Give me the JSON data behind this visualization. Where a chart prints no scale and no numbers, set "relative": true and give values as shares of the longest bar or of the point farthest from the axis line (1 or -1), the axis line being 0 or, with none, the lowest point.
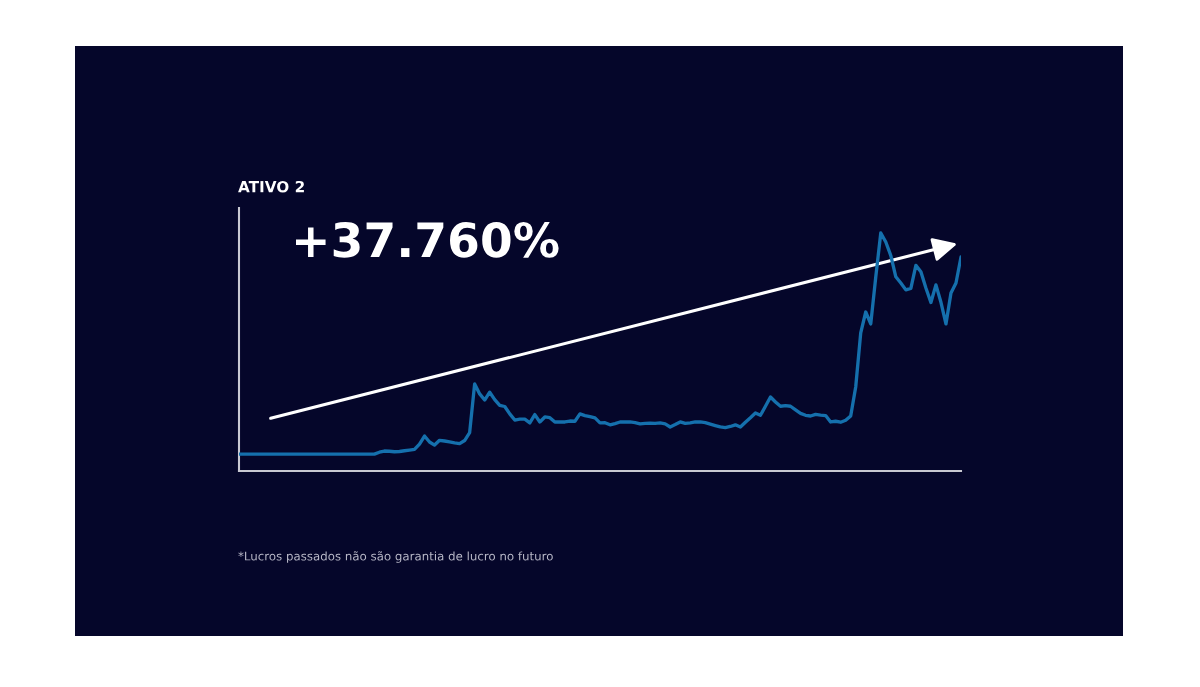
{
  "chart_data": {
    "type": "line",
    "title": "ATIVO 2",
    "annotations": [
      "+37.760%",
      "*Lucros passados não são garantia de lucro no futuro"
    ],
    "categories": [
      null,
      null,
      null,
      null,
      null,
      null,
      null,
      null,
      null,
      null,
      null,
      null,
      null,
      null,
      null,
      null,
      null,
      null,
      null,
      null,
      null,
      null,
      null,
      null,
      null,
      null,
      null,
      null,
      null,
      null,
      null,
      null,
      null,
      null,
      null,
      null,
      null,
      null,
      null,
      null,
      null,
      null,
      null,
      null,
      null,
      null,
      null,
      null,
      null,
      null,
      null,
      null,
      null,
      null,
      null,
      null,
      null,
      null,
      null,
      null,
      null,
      null,
      null,
      null,
      null,
      null,
      null,
      null,
      null,
      null,
      null,
      null,
      null,
      null,
      null,
      null,
      null,
      null,
      null,
      null,
      null,
      null,
      null,
      null,
      null,
      null,
      null,
      null,
      null,
      null,
      null,
      null,
      null,
      null,
      null,
      null,
      null,
      null,
      null,
      null,
      null,
      null,
      null,
      null,
      null,
      null,
      null,
      null,
      null,
      null,
      null,
      null,
      null,
      null,
      null,
      null,
      null,
      null,
      null,
      null,
      null,
      null,
      null,
      null,
      null,
      null,
      null,
      null,
      null,
      null,
      null,
      null,
      null,
      null,
      null,
      null,
      null,
      null,
      null,
      null,
      null,
      null,
      null,
      null,
      null
    ],
    "relative": true,
    "series": [
      {
        "color": "#1570ad",
        "values": [
          0.071,
          0.071,
          0.071,
          0.071,
          0.071,
          0.071,
          0.071,
          0.071,
          0.071,
          0.071,
          0.071,
          0.071,
          0.071,
          0.071,
          0.071,
          0.071,
          0.071,
          0.071,
          0.071,
          0.071,
          0.071,
          0.071,
          0.071,
          0.071,
          0.071,
          0.071,
          0.071,
          0.071,
          0.079,
          0.084,
          0.083,
          0.081,
          0.082,
          0.085,
          0.088,
          0.091,
          0.113,
          0.147,
          0.122,
          0.109,
          0.129,
          0.126,
          0.122,
          0.118,
          0.115,
          0.128,
          0.161,
          0.366,
          0.324,
          0.298,
          0.331,
          0.3,
          0.276,
          0.271,
          0.24,
          0.214,
          0.218,
          0.218,
          0.202,
          0.237,
          0.206,
          0.227,
          0.224,
          0.206,
          0.206,
          0.206,
          0.21,
          0.209,
          0.24,
          0.233,
          0.228,
          0.223,
          0.202,
          0.203,
          0.194,
          0.199,
          0.206,
          0.206,
          0.206,
          0.203,
          0.198,
          0.2,
          0.201,
          0.2,
          0.202,
          0.198,
          0.185,
          0.195,
          0.206,
          0.2,
          0.202,
          0.206,
          0.206,
          0.203,
          0.197,
          0.191,
          0.185,
          0.182,
          0.187,
          0.194,
          0.185,
          0.205,
          0.224,
          0.244,
          0.234,
          0.272,
          0.311,
          0.29,
          0.272,
          0.275,
          0.272,
          0.257,
          0.242,
          0.234,
          0.231,
          0.238,
          0.235,
          0.233,
          0.206,
          0.209,
          0.205,
          0.213,
          0.231,
          0.353,
          0.58,
          0.668,
          0.618,
          0.815,
          1.0,
          0.962,
          0.905,
          0.816,
          0.79,
          0.761,
          0.767,
          0.864,
          0.837,
          0.769,
          0.708,
          0.782,
          0.709,
          0.618,
          0.748,
          0.79,
          0.899
        ]
      }
    ],
    "line_style": "solid"
  }
}
